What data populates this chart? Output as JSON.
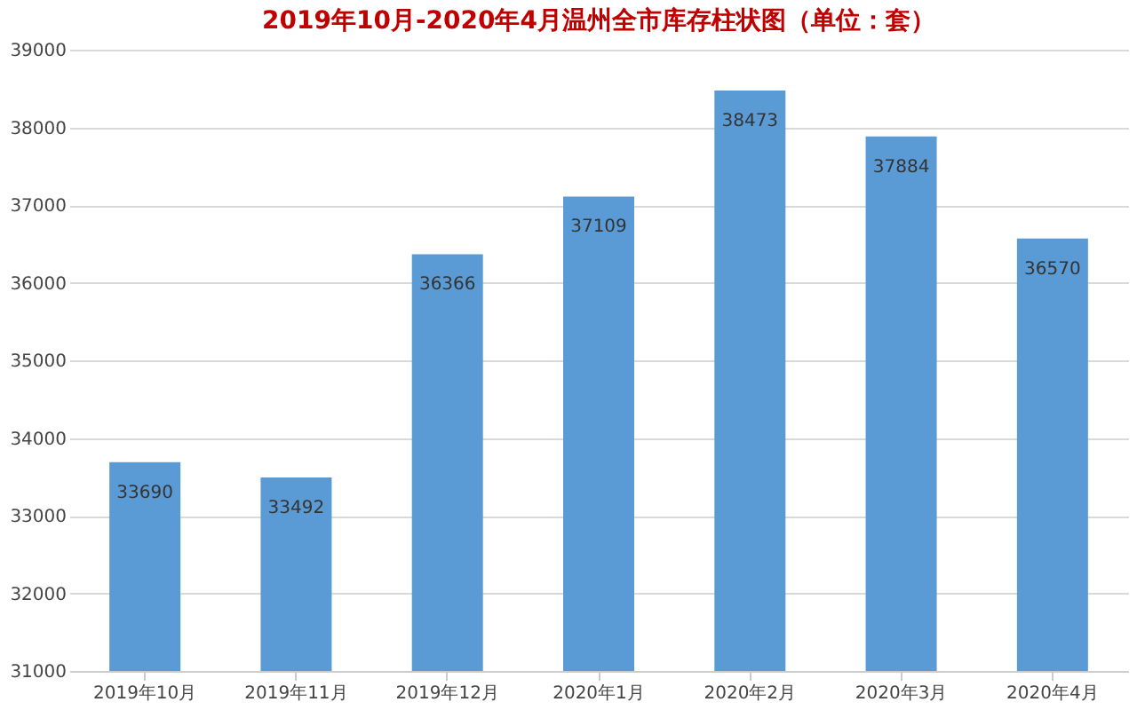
{
  "chart_data": {
    "type": "bar",
    "title": "2019年10月-2020年4月温州全市库存柱状图（单位：套）",
    "categories": [
      "2019年10月",
      "2019年11月",
      "2019年12月",
      "2020年1月",
      "2020年2月",
      "2020年3月",
      "2020年4月"
    ],
    "values": [
      33690,
      33492,
      36366,
      37109,
      38473,
      37884,
      36570
    ],
    "color": "#5b9bd5",
    "ylim": [
      31000,
      39000
    ],
    "yticks": [
      31000,
      32000,
      33000,
      34000,
      35000,
      36000,
      37000,
      38000,
      39000
    ],
    "grid": "y",
    "data_labels": true
  }
}
